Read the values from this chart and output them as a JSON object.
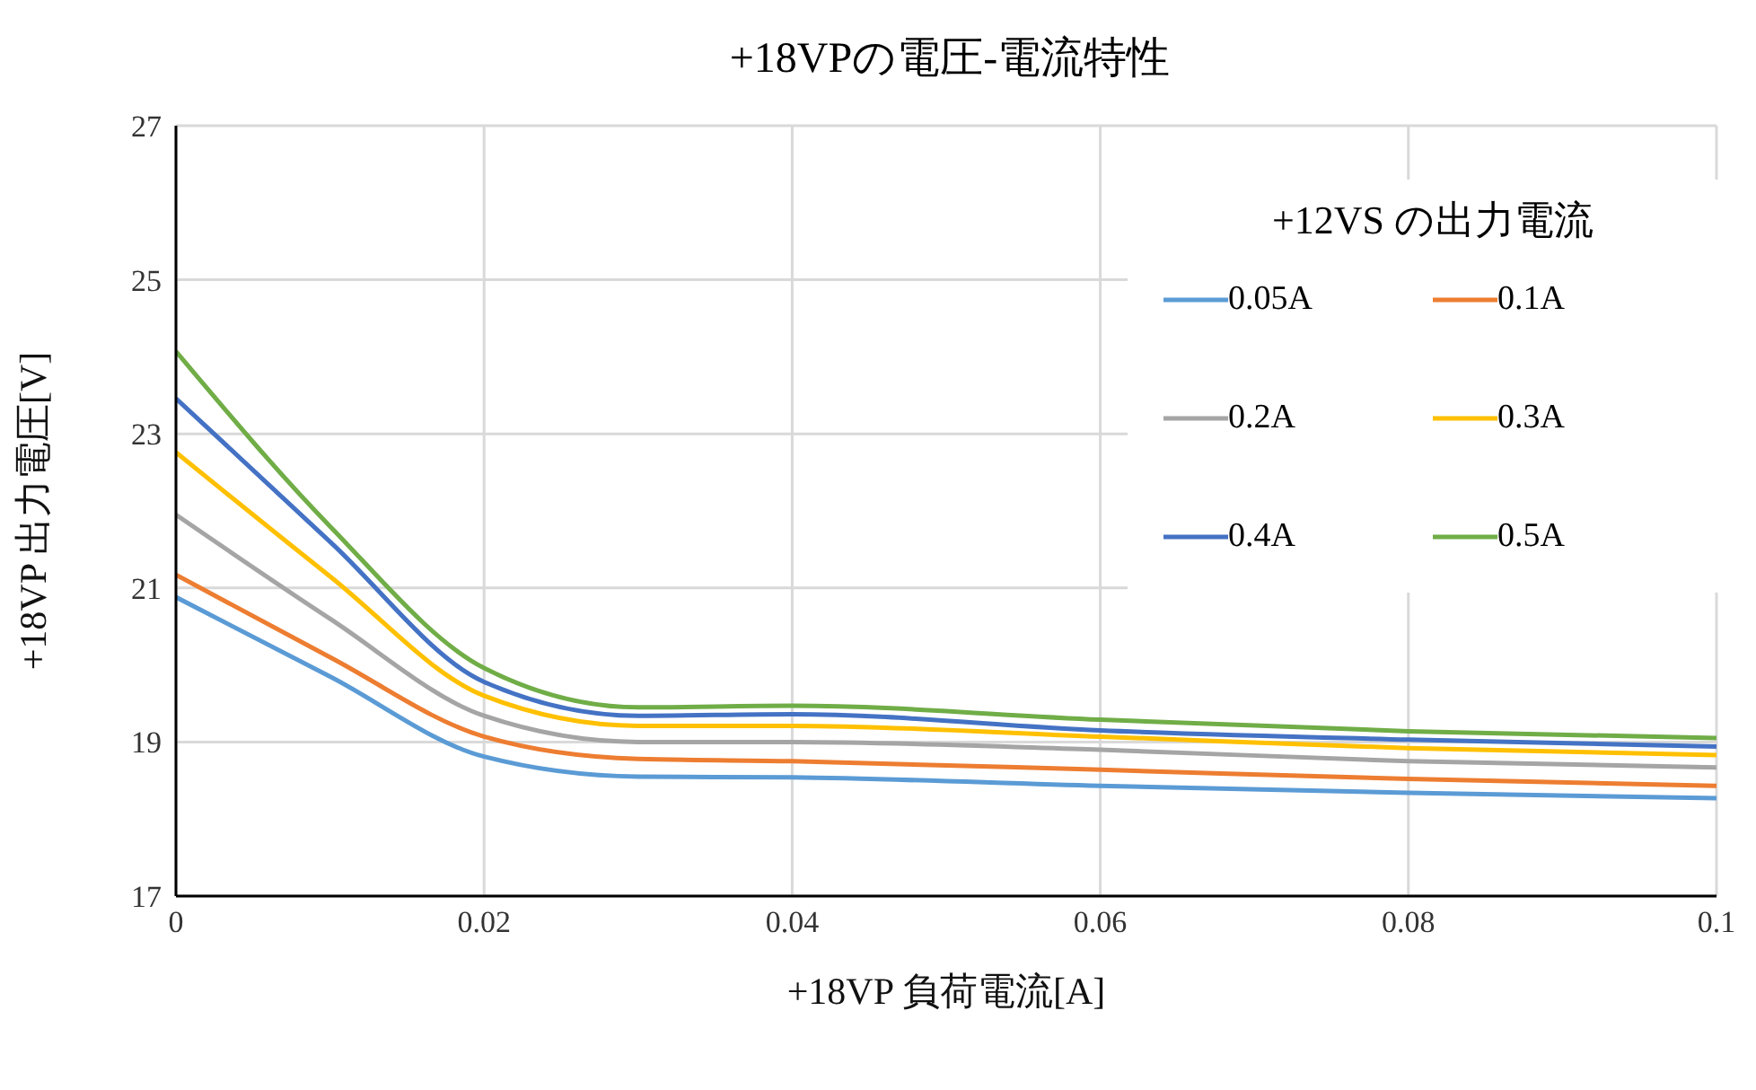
{
  "chart_data": {
    "type": "line",
    "title": "+18VPの電圧-電流特性",
    "xlabel": "+18VP 負荷電流[A]",
    "ylabel": "+18VP 出力電圧[V]",
    "legend_title": "+12VS の出力電流",
    "x": [
      0,
      0.01,
      0.02,
      0.03,
      0.04,
      0.06,
      0.08,
      0.1
    ],
    "series": [
      {
        "name": "0.05A",
        "color": "#5b9bd5",
        "values": [
          20.88,
          19.85,
          18.81,
          18.55,
          18.54,
          18.43,
          18.34,
          18.27
        ]
      },
      {
        "name": "0.1A",
        "color": "#ed7d31",
        "values": [
          21.17,
          20.1,
          19.07,
          18.78,
          18.75,
          18.64,
          18.52,
          18.43
        ]
      },
      {
        "name": "0.2A",
        "color": "#a5a5a5",
        "values": [
          21.95,
          20.6,
          19.34,
          19.0,
          19.0,
          18.9,
          18.75,
          18.67
        ]
      },
      {
        "name": "0.3A",
        "color": "#ffc000",
        "values": [
          22.76,
          21.15,
          19.6,
          19.21,
          19.21,
          19.07,
          18.92,
          18.83
        ]
      },
      {
        "name": "0.4A",
        "color": "#4472c4",
        "values": [
          23.46,
          21.6,
          19.78,
          19.34,
          19.36,
          19.15,
          19.03,
          18.94
        ]
      },
      {
        "name": "0.5A",
        "color": "#70ad47",
        "values": [
          24.07,
          21.8,
          19.96,
          19.45,
          19.47,
          19.29,
          19.14,
          19.05
        ]
      }
    ],
    "xlim": [
      0,
      0.1
    ],
    "xticks": [
      0,
      0.02,
      0.04,
      0.06,
      0.08,
      {
        "value": 0.1,
        "label": "0.1"
      }
    ],
    "ylim": [
      17,
      27
    ],
    "yticks": [
      17,
      19,
      21,
      23,
      25,
      27
    ],
    "grid": true,
    "legend": "top right",
    "marker": "none",
    "line_style": "solid"
  }
}
